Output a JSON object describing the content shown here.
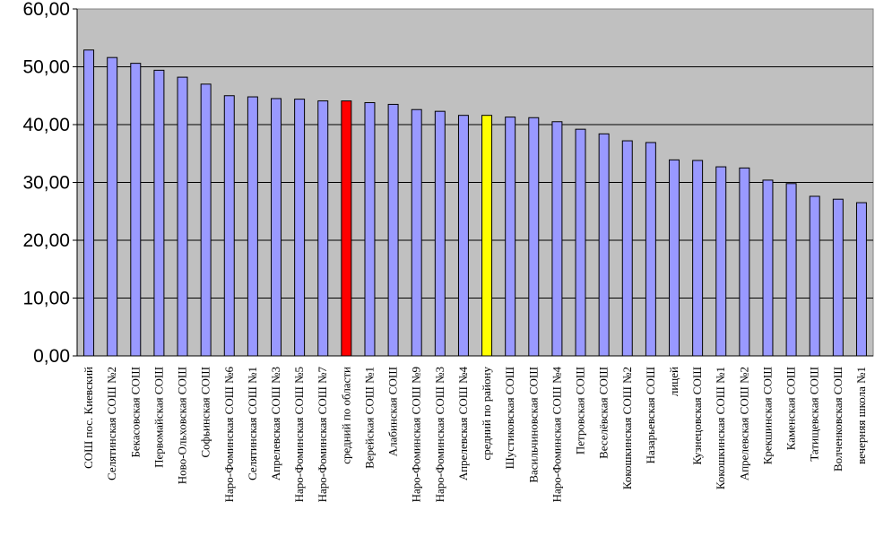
{
  "chart_data": {
    "type": "bar",
    "title": "",
    "xlabel": "",
    "ylabel": "",
    "ylim": [
      0,
      60
    ],
    "yticks": [
      "0,00",
      "10,00",
      "20,00",
      "30,00",
      "40,00",
      "50,00",
      "60,00"
    ],
    "grid": "horizontal",
    "colors": {
      "plot_background": "#c0c0c0",
      "bar_default": "#9999ff",
      "bar_highlight_region": "#ff0000",
      "bar_highlight_district": "#ffff00",
      "bar_border": "#000000"
    },
    "categories": [
      "СОШ  пос. Киевский",
      "Селятинская СОШ №2",
      "Бекасовская СОШ",
      "Первомайская СОШ",
      "Ново-Ольховская СОШ",
      "Софьинская СОШ",
      "Наро-Фоминская СОШ №6",
      "Селятинская СОШ №1",
      "Апрелевская СОШ №3",
      "Наро-Фоминская СОШ №5",
      "Наро-Фоминская СОШ №7",
      "средний по области",
      "Верейская СОШ №1",
      "Алабинская СОШ",
      "Наро-Фоминская СОШ №9",
      "Наро-Фоминская СОШ №3",
      "Апрелевская СОШ №4",
      "средний по району",
      "Шустиковская СОШ",
      "Васильчиновская СОШ",
      "Наро-Фоминская СОШ №4",
      "Петровская СОШ",
      "Веселёвская СОШ",
      "Кокошкинская СОШ №2",
      "Назарьевская СОШ",
      "лицей",
      "Кузнецовская СОШ",
      "Кокошкинская СОШ №1",
      "Апрелевская СОШ №2",
      "Крекшинская СОШ",
      "Каменская СОШ",
      "Татищевская СОШ",
      "Волченковская СОШ",
      "вечерняя  школа №1"
    ],
    "values": [
      52.9,
      51.6,
      50.6,
      49.4,
      48.2,
      47.0,
      45.0,
      44.8,
      44.5,
      44.4,
      44.1,
      44.1,
      43.8,
      43.5,
      42.6,
      42.3,
      41.6,
      41.6,
      41.3,
      41.2,
      40.5,
      39.2,
      38.4,
      37.2,
      36.9,
      33.9,
      33.8,
      32.7,
      32.5,
      30.4,
      29.8,
      27.6,
      27.1,
      26.5
    ],
    "highlight": {
      "средний по области": "bar_highlight_region",
      "средний по району": "bar_highlight_district"
    }
  }
}
